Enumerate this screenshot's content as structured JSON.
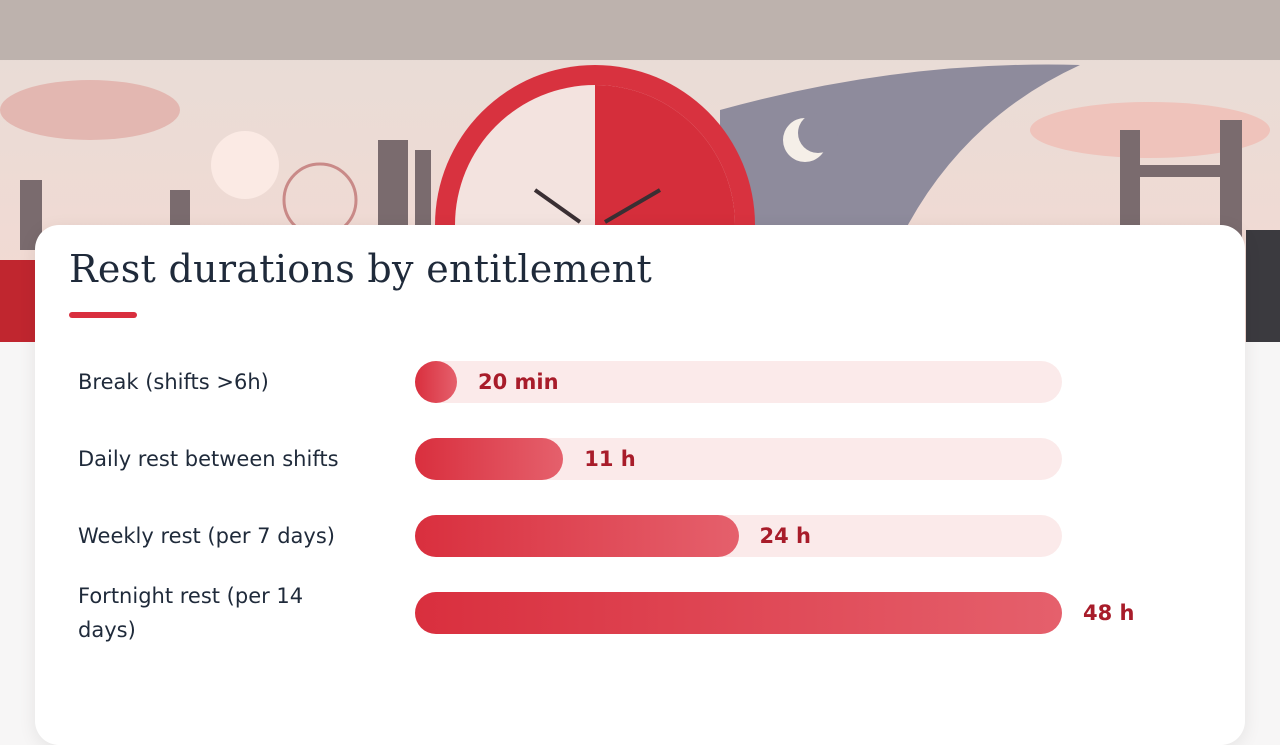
{
  "chart_data": {
    "type": "bar",
    "title": "Rest durations by entitlement",
    "categories": [
      "Break (shifts >6h)",
      "Daily rest between shifts",
      "Weekly rest (per 7 days)",
      "Fortnight rest (per 14 days)"
    ],
    "values": [
      20,
      660,
      1440,
      2880
    ],
    "value_labels": [
      "20 min",
      "11 h",
      "24 h",
      "48 h"
    ],
    "xlim": [
      0,
      2880
    ],
    "color": "#d92f3e"
  }
}
